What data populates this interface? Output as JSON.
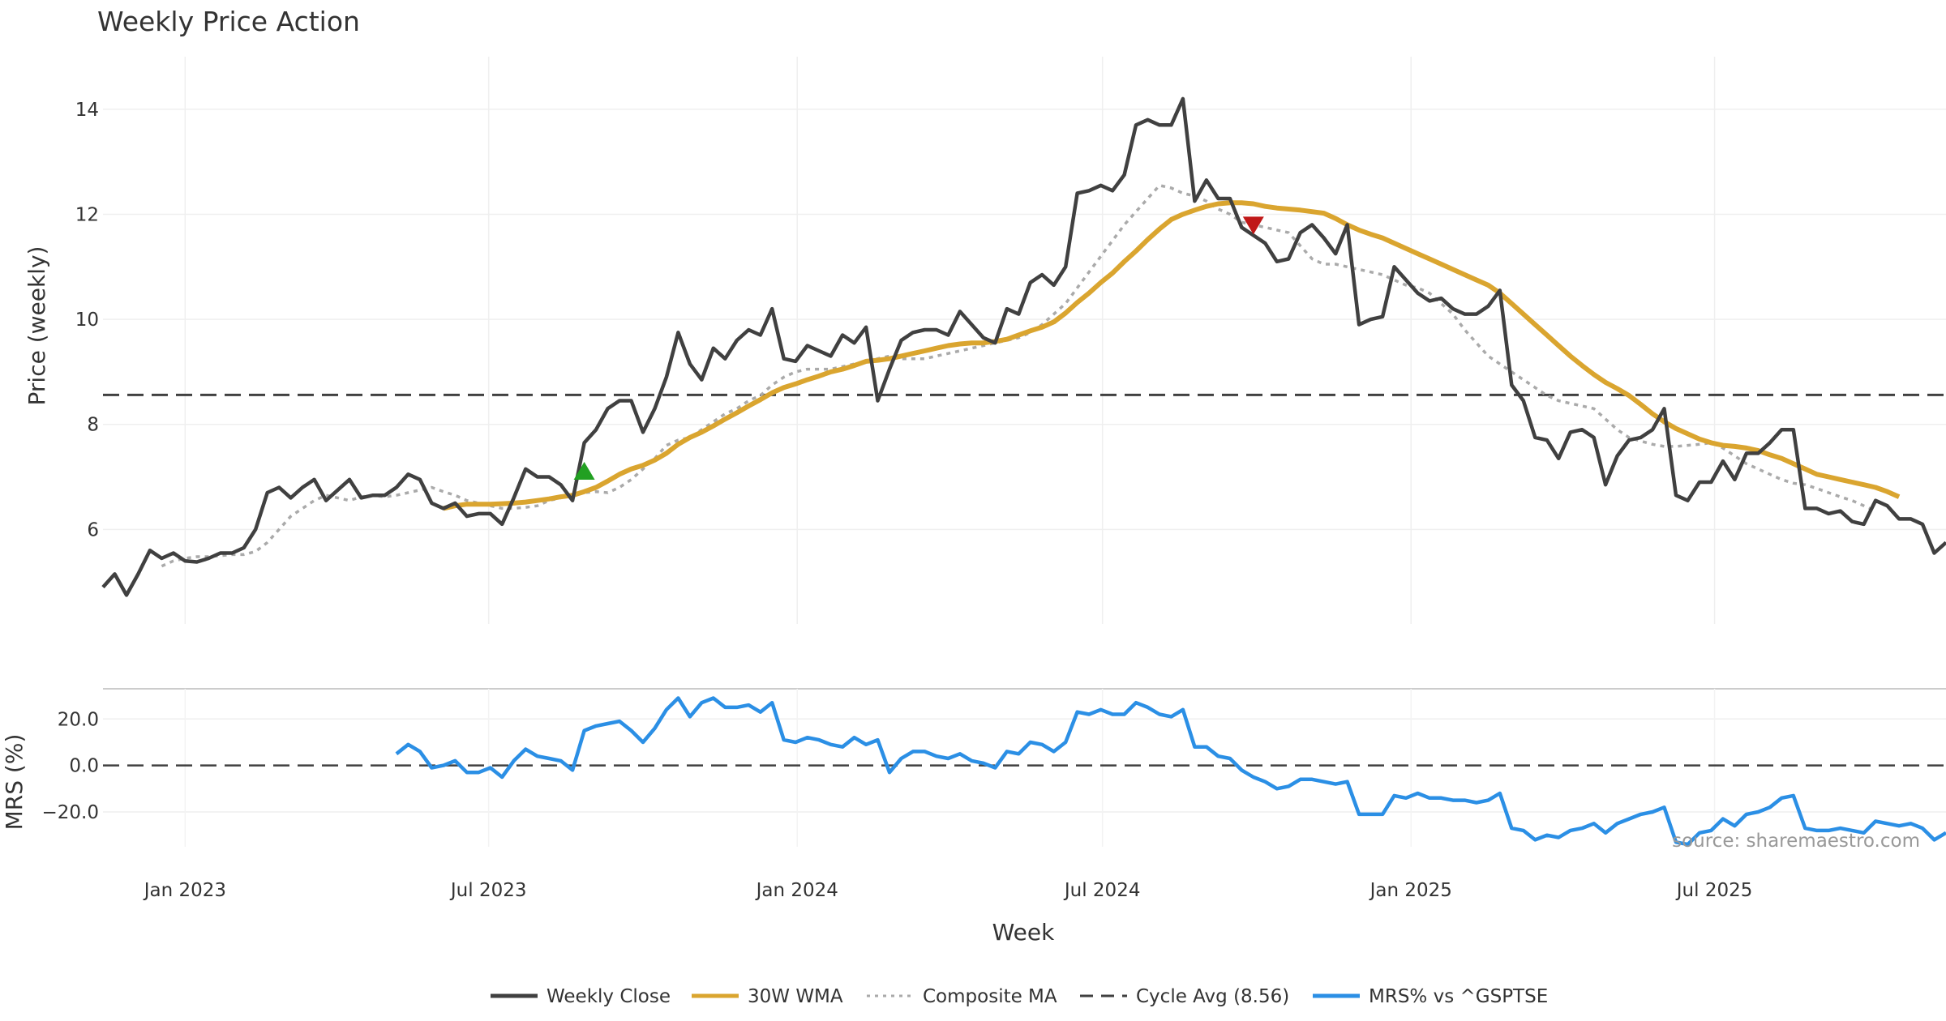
{
  "chart_data": {
    "type": "line",
    "title": "Weekly Price Action",
    "source_note": "source: sharemaestro.com",
    "xlabel": "Week",
    "x_start": "2022-11-13",
    "x_step_days": 7,
    "x_ticks": [
      {
        "date": "2023-01-01",
        "label": "Jan 2023"
      },
      {
        "date": "2023-07-01",
        "label": "Jul 2023"
      },
      {
        "date": "2024-01-01",
        "label": "Jan 2024"
      },
      {
        "date": "2024-07-01",
        "label": "Jul 2024"
      },
      {
        "date": "2025-01-01",
        "label": "Jan 2025"
      },
      {
        "date": "2025-07-01",
        "label": "Jul 2025"
      }
    ],
    "price_panel": {
      "ylabel": "Price (weekly)",
      "ylim": [
        4.2,
        15
      ],
      "yticks": [
        6,
        8,
        10,
        12,
        14
      ],
      "cycle_avg": 8.56,
      "series": [
        {
          "name": "Weekly Close",
          "color": "#404040",
          "style": "solid",
          "start_index": 0,
          "values": [
            4.9,
            5.15,
            4.75,
            5.15,
            5.6,
            5.45,
            5.55,
            5.4,
            5.38,
            5.45,
            5.55,
            5.55,
            5.65,
            6.0,
            6.7,
            6.8,
            6.6,
            6.8,
            6.95,
            6.55,
            6.75,
            6.95,
            6.6,
            6.65,
            6.65,
            6.8,
            7.05,
            6.95,
            6.5,
            6.4,
            6.5,
            6.25,
            6.3,
            6.3,
            6.1,
            6.6,
            7.15,
            7.0,
            7.0,
            6.85,
            6.55,
            7.65,
            7.9,
            8.3,
            8.45,
            8.45,
            7.85,
            8.3,
            8.9,
            9.75,
            9.15,
            8.85,
            9.45,
            9.25,
            9.6,
            9.8,
            9.7,
            10.2,
            9.25,
            9.2,
            9.5,
            9.4,
            9.3,
            9.7,
            9.55,
            9.85,
            8.45,
            9.05,
            9.6,
            9.75,
            9.8,
            9.8,
            9.7,
            10.15,
            9.9,
            9.65,
            9.55,
            10.2,
            10.1,
            10.7,
            10.85,
            10.65,
            11.0,
            12.4,
            12.45,
            12.55,
            12.45,
            12.75,
            13.7,
            13.8,
            13.7,
            13.7,
            14.2,
            12.25,
            12.65,
            12.3,
            12.3,
            11.75,
            11.6,
            11.45,
            11.1,
            11.15,
            11.65,
            11.8,
            11.55,
            11.25,
            11.8,
            9.9,
            10.0,
            10.05,
            11.0,
            10.75,
            10.5,
            10.35,
            10.4,
            10.2,
            10.1,
            10.1,
            10.25,
            10.55,
            8.75,
            8.45,
            7.75,
            7.7,
            7.35,
            7.85,
            7.9,
            7.75,
            6.85,
            7.4,
            7.7,
            7.75,
            7.9,
            8.3,
            6.65,
            6.55,
            6.9,
            6.9,
            7.3,
            6.95,
            7.45,
            7.45,
            7.65,
            7.9,
            7.9,
            6.4,
            6.4,
            6.3,
            6.35,
            6.15,
            6.1,
            6.55,
            6.45,
            6.2,
            6.2,
            6.1,
            5.55,
            5.75
          ]
        },
        {
          "name": "30W WMA",
          "color": "#DAA52F",
          "style": "solid",
          "start_index": 29,
          "values": [
            6.4,
            6.45,
            6.48,
            6.48,
            6.48,
            6.49,
            6.5,
            6.52,
            6.55,
            6.58,
            6.62,
            6.65,
            6.72,
            6.8,
            6.92,
            7.05,
            7.15,
            7.22,
            7.32,
            7.45,
            7.62,
            7.75,
            7.85,
            7.97,
            8.1,
            8.22,
            8.35,
            8.47,
            8.6,
            8.7,
            8.77,
            8.85,
            8.92,
            9.0,
            9.05,
            9.12,
            9.2,
            9.22,
            9.25,
            9.3,
            9.35,
            9.4,
            9.45,
            9.5,
            9.53,
            9.55,
            9.55,
            9.58,
            9.62,
            9.7,
            9.78,
            9.85,
            9.95,
            10.12,
            10.32,
            10.5,
            10.7,
            10.88,
            11.1,
            11.3,
            11.52,
            11.72,
            11.9,
            12.0,
            12.08,
            12.15,
            12.2,
            12.22,
            12.22,
            12.2,
            12.15,
            12.12,
            12.1,
            12.08,
            12.05,
            12.02,
            11.92,
            11.8,
            11.7,
            11.62,
            11.55,
            11.45,
            11.35,
            11.25,
            11.15,
            11.05,
            10.95,
            10.85,
            10.75,
            10.65,
            10.5,
            10.3,
            10.1,
            9.9,
            9.7,
            9.5,
            9.3,
            9.12,
            8.95,
            8.8,
            8.68,
            8.55,
            8.38,
            8.2,
            8.05,
            7.92,
            7.82,
            7.72,
            7.65,
            7.6,
            7.58,
            7.55,
            7.5,
            7.42,
            7.35,
            7.25,
            7.15,
            7.05,
            7.0,
            6.95,
            6.9,
            6.85,
            6.8,
            6.72,
            6.62
          ]
        },
        {
          "name": "Composite MA",
          "color": "#AAAAAA",
          "style": "dotted",
          "start_index": 5,
          "values": [
            5.3,
            5.4,
            5.45,
            5.48,
            5.48,
            5.5,
            5.52,
            5.52,
            5.58,
            5.75,
            6.0,
            6.25,
            6.4,
            6.55,
            6.65,
            6.6,
            6.55,
            6.62,
            6.65,
            6.62,
            6.65,
            6.7,
            6.75,
            6.8,
            6.72,
            6.65,
            6.55,
            6.5,
            6.45,
            6.4,
            6.4,
            6.42,
            6.45,
            6.55,
            6.6,
            6.65,
            6.7,
            6.72,
            6.7,
            6.8,
            6.95,
            7.15,
            7.35,
            7.6,
            7.7,
            7.75,
            7.9,
            8.05,
            8.2,
            8.3,
            8.45,
            8.55,
            8.75,
            8.9,
            9.0,
            9.05,
            9.05,
            9.05,
            9.1,
            9.15,
            9.2,
            9.25,
            9.3,
            9.25,
            9.25,
            9.25,
            9.3,
            9.35,
            9.4,
            9.45,
            9.5,
            9.55,
            9.6,
            9.65,
            9.75,
            9.9,
            10.1,
            10.3,
            10.6,
            10.9,
            11.2,
            11.5,
            11.8,
            12.05,
            12.3,
            12.55,
            12.5,
            12.4,
            12.35,
            12.25,
            12.1,
            12.0,
            11.85,
            11.8,
            11.75,
            11.7,
            11.65,
            11.4,
            11.15,
            11.05,
            11.05,
            11.0,
            10.95,
            10.9,
            10.85,
            10.75,
            10.65,
            10.6,
            10.5,
            10.3,
            10.1,
            9.8,
            9.55,
            9.3,
            9.15,
            9.0,
            8.85,
            8.7,
            8.55,
            8.45,
            8.4,
            8.35,
            8.3,
            8.1,
            7.9,
            7.75,
            7.68,
            7.62,
            7.58,
            7.58,
            7.6,
            7.62,
            7.65,
            7.55,
            7.4,
            7.25,
            7.15,
            7.05,
            6.95,
            6.88,
            6.85,
            6.78,
            6.7,
            6.62,
            6.55,
            6.45,
            6.35
          ]
        }
      ],
      "signals": [
        {
          "type": "buy",
          "index": 41,
          "value": 7.1,
          "color": "#22A022"
        },
        {
          "type": "sell",
          "index": 98,
          "value": 11.8,
          "color": "#C01818"
        }
      ]
    },
    "mrs_panel": {
      "ylabel": "MRS (%)",
      "ylim": [
        -35,
        33
      ],
      "yticks": [
        20.0,
        0.0,
        -20.0
      ],
      "series": {
        "name": "MRS% vs ^GSPTSE",
        "color": "#2B8FE5",
        "start_index": 25,
        "values": [
          5,
          9,
          6,
          -1,
          0,
          2,
          -3,
          -3,
          -1,
          -5,
          2,
          7,
          4,
          3,
          2,
          -2,
          15,
          17,
          18,
          19,
          15,
          10,
          16,
          24,
          29,
          21,
          27,
          29,
          25,
          25,
          26,
          23,
          27,
          11,
          10,
          12,
          11,
          9,
          8,
          12,
          9,
          11,
          -3,
          3,
          6,
          6,
          4,
          3,
          5,
          2,
          1,
          -1,
          6,
          5,
          10,
          9,
          6,
          10,
          23,
          22,
          24,
          22,
          22,
          27,
          25,
          22,
          21,
          24,
          8,
          8,
          4,
          3,
          -2,
          -5,
          -7,
          -10,
          -9,
          -6,
          -6,
          -7,
          -8,
          -7,
          -21,
          -21,
          -21,
          -13,
          -14,
          -12,
          -14,
          -14,
          -15,
          -15,
          -16,
          -15,
          -12,
          -27,
          -28,
          -32,
          -30,
          -31,
          -28,
          -27,
          -25,
          -29,
          -25,
          -23,
          -21,
          -20,
          -18,
          -33,
          -34,
          -29,
          -28,
          -23,
          -26,
          -21,
          -20,
          -18,
          -14,
          -13,
          -27,
          -28,
          -28,
          -27,
          -28,
          -29,
          -24,
          -25,
          -26,
          -25,
          -27,
          -32,
          -29
        ]
      }
    },
    "legend": [
      {
        "label": "Weekly Close",
        "color": "#404040",
        "style": "solid"
      },
      {
        "label": "30W WMA",
        "color": "#DAA52F",
        "style": "solid"
      },
      {
        "label": "Composite MA",
        "color": "#AAAAAA",
        "style": "dotted"
      },
      {
        "label": "Cycle Avg (8.56)",
        "color": "#404040",
        "style": "dashed"
      },
      {
        "label": "MRS% vs ^GSPTSE",
        "color": "#2B8FE5",
        "style": "solid"
      }
    ]
  }
}
